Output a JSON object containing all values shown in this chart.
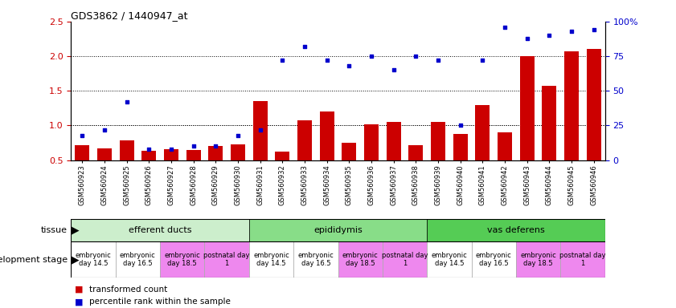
{
  "title": "GDS3862 / 1440947_at",
  "samples": [
    "GSM560923",
    "GSM560924",
    "GSM560925",
    "GSM560926",
    "GSM560927",
    "GSM560928",
    "GSM560929",
    "GSM560930",
    "GSM560931",
    "GSM560932",
    "GSM560933",
    "GSM560934",
    "GSM560935",
    "GSM560936",
    "GSM560937",
    "GSM560938",
    "GSM560939",
    "GSM560940",
    "GSM560941",
    "GSM560942",
    "GSM560943",
    "GSM560944",
    "GSM560945",
    "GSM560946"
  ],
  "transformed_count": [
    0.72,
    0.67,
    0.78,
    0.63,
    0.66,
    0.65,
    0.7,
    0.73,
    1.35,
    0.62,
    1.07,
    1.2,
    0.75,
    1.02,
    1.05,
    0.72,
    1.05,
    0.88,
    1.3,
    0.9,
    2.0,
    1.57,
    2.07,
    2.1
  ],
  "percentile_values_pct": [
    18,
    22,
    42,
    8,
    8,
    10,
    10,
    18,
    22,
    72,
    82,
    72,
    68,
    75,
    65,
    75,
    72,
    25,
    72,
    96,
    88,
    90,
    93,
    94
  ],
  "bar_color": "#cc0000",
  "dot_color": "#0000cc",
  "tissue_groups": [
    {
      "label": "efferent ducts",
      "start": 0,
      "end": 8,
      "color": "#cceecc"
    },
    {
      "label": "epididymis",
      "start": 8,
      "end": 16,
      "color": "#88dd88"
    },
    {
      "label": "vas deferens",
      "start": 16,
      "end": 24,
      "color": "#55cc55"
    }
  ],
  "dev_stages": [
    {
      "label": "embryonic\nday 14.5",
      "start": 0,
      "end": 2,
      "color": "#ffffff"
    },
    {
      "label": "embryonic\nday 16.5",
      "start": 2,
      "end": 4,
      "color": "#ffffff"
    },
    {
      "label": "embryonic\nday 18.5",
      "start": 4,
      "end": 6,
      "color": "#ee88ee"
    },
    {
      "label": "postnatal day\n1",
      "start": 6,
      "end": 8,
      "color": "#ee88ee"
    },
    {
      "label": "embryonic\nday 14.5",
      "start": 8,
      "end": 10,
      "color": "#ffffff"
    },
    {
      "label": "embryonic\nday 16.5",
      "start": 10,
      "end": 12,
      "color": "#ffffff"
    },
    {
      "label": "embryonic\nday 18.5",
      "start": 12,
      "end": 14,
      "color": "#ee88ee"
    },
    {
      "label": "postnatal day\n1",
      "start": 14,
      "end": 16,
      "color": "#ee88ee"
    },
    {
      "label": "embryonic\nday 14.5",
      "start": 16,
      "end": 18,
      "color": "#ffffff"
    },
    {
      "label": "embryonic\nday 16.5",
      "start": 18,
      "end": 20,
      "color": "#ffffff"
    },
    {
      "label": "embryonic\nday 18.5",
      "start": 20,
      "end": 22,
      "color": "#ee88ee"
    },
    {
      "label": "postnatal day\n1",
      "start": 22,
      "end": 24,
      "color": "#ee88ee"
    }
  ],
  "ylim_left": [
    0.5,
    2.5
  ],
  "ylim_right": [
    0,
    100
  ],
  "yticks_left": [
    0.5,
    1.0,
    1.5,
    2.0,
    2.5
  ],
  "yticks_right": [
    0,
    25,
    50,
    75,
    100
  ],
  "ytick_labels_right": [
    "0",
    "25",
    "50",
    "75",
    "100%"
  ],
  "grid_values": [
    1.0,
    1.5,
    2.0
  ],
  "bg_color": "#ffffff"
}
